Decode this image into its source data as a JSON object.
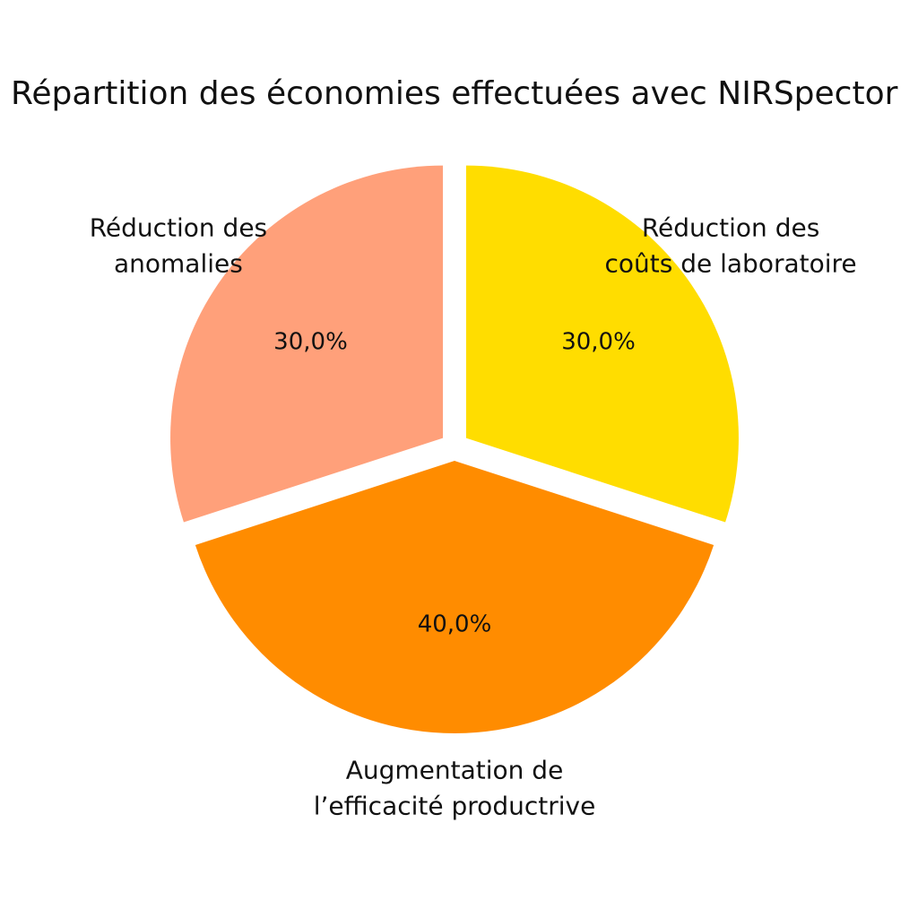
{
  "chart_data": {
    "type": "pie",
    "title": "Répartition des économies effectuées avec NIRSpector",
    "legend": "none",
    "exploded": true,
    "slices": [
      {
        "label": [
          "Réduction des",
          "coûts de laboratoire"
        ],
        "value": 30,
        "percent_label": "30,0%",
        "color": "#FFDD00"
      },
      {
        "label": [
          "Augmentation de",
          "l’efficacité productrive"
        ],
        "value": 40,
        "percent_label": "40,0%",
        "color": "#FF8C00"
      },
      {
        "label": [
          "Réduction des",
          "anomalies"
        ],
        "value": 30,
        "percent_label": "30,0%",
        "color": "#FFA07A"
      }
    ]
  }
}
